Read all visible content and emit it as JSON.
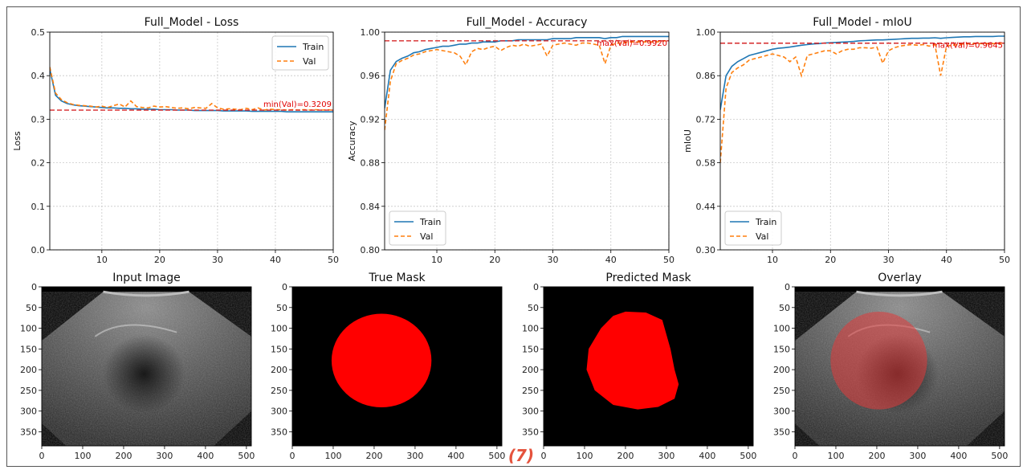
{
  "panel_label": "(7)",
  "colors": {
    "train": "#1f77b4",
    "val": "#ff7f0e",
    "reference_line": "#d62728",
    "annotation": "#ff0000",
    "mask": "#ff0000",
    "border": "#555555"
  },
  "chart_data": [
    {
      "type": "line",
      "title": "Full_Model - Loss",
      "xlabel": "",
      "ylabel": "Loss",
      "xlim": [
        1,
        50
      ],
      "ylim": [
        0.0,
        0.5
      ],
      "xticks": [
        10,
        20,
        30,
        40,
        50
      ],
      "yticks": [
        0.0,
        0.1,
        0.2,
        0.3,
        0.4,
        0.5
      ],
      "ytick_labels": [
        "0.0",
        "0.1",
        "0.2",
        "0.3",
        "0.4",
        "0.5"
      ],
      "grid": true,
      "legend": "upper right",
      "x": [
        1,
        2,
        3,
        4,
        5,
        6,
        7,
        8,
        9,
        10,
        11,
        12,
        13,
        14,
        15,
        16,
        17,
        18,
        19,
        20,
        21,
        22,
        23,
        24,
        25,
        26,
        27,
        28,
        29,
        30,
        31,
        32,
        33,
        34,
        35,
        36,
        37,
        38,
        39,
        40,
        41,
        42,
        43,
        44,
        45,
        46,
        47,
        48,
        49,
        50
      ],
      "series": [
        {
          "name": "Train",
          "style": "solid",
          "values": [
            0.415,
            0.355,
            0.342,
            0.336,
            0.333,
            0.331,
            0.33,
            0.329,
            0.328,
            0.327,
            0.326,
            0.326,
            0.325,
            0.325,
            0.324,
            0.324,
            0.323,
            0.323,
            0.323,
            0.322,
            0.322,
            0.322,
            0.321,
            0.321,
            0.321,
            0.32,
            0.32,
            0.32,
            0.32,
            0.32,
            0.319,
            0.319,
            0.319,
            0.319,
            0.319,
            0.318,
            0.318,
            0.318,
            0.318,
            0.318,
            0.318,
            0.317,
            0.317,
            0.317,
            0.317,
            0.317,
            0.317,
            0.317,
            0.317,
            0.317
          ]
        },
        {
          "name": "Val",
          "style": "dashed",
          "values": [
            0.42,
            0.36,
            0.345,
            0.338,
            0.334,
            0.332,
            0.331,
            0.33,
            0.328,
            0.33,
            0.327,
            0.331,
            0.335,
            0.328,
            0.342,
            0.329,
            0.327,
            0.326,
            0.33,
            0.328,
            0.329,
            0.327,
            0.325,
            0.326,
            0.324,
            0.327,
            0.326,
            0.325,
            0.336,
            0.326,
            0.323,
            0.324,
            0.323,
            0.322,
            0.325,
            0.322,
            0.326,
            0.321,
            0.323,
            0.322,
            0.322,
            0.321,
            0.322,
            0.321,
            0.322,
            0.321,
            0.322,
            0.321,
            0.3215,
            0.3209
          ]
        }
      ],
      "reference_line": {
        "value": 0.3209,
        "label": "min(Val)=0.3209"
      }
    },
    {
      "type": "line",
      "title": "Full_Model - Accuracy",
      "xlabel": "",
      "ylabel": "Accuracy",
      "xlim": [
        1,
        50
      ],
      "ylim": [
        0.8,
        1.0
      ],
      "xticks": [
        10,
        20,
        30,
        40,
        50
      ],
      "yticks": [
        0.8,
        0.84,
        0.88,
        0.92,
        0.96,
        1.0
      ],
      "ytick_labels": [
        "0.80",
        "0.84",
        "0.88",
        "0.92",
        "0.96",
        "1.00"
      ],
      "grid": true,
      "legend": "lower left",
      "x": [
        1,
        2,
        3,
        4,
        5,
        6,
        7,
        8,
        9,
        10,
        11,
        12,
        13,
        14,
        15,
        16,
        17,
        18,
        19,
        20,
        21,
        22,
        23,
        24,
        25,
        26,
        27,
        28,
        29,
        30,
        31,
        32,
        33,
        34,
        35,
        36,
        37,
        38,
        39,
        40,
        41,
        42,
        43,
        44,
        45,
        46,
        47,
        48,
        49,
        50
      ],
      "series": [
        {
          "name": "Train",
          "style": "solid",
          "values": [
            0.93,
            0.965,
            0.973,
            0.976,
            0.978,
            0.981,
            0.982,
            0.984,
            0.985,
            0.986,
            0.987,
            0.987,
            0.988,
            0.989,
            0.989,
            0.99,
            0.99,
            0.991,
            0.991,
            0.991,
            0.992,
            0.992,
            0.992,
            0.993,
            0.993,
            0.993,
            0.993,
            0.993,
            0.993,
            0.994,
            0.994,
            0.994,
            0.994,
            0.995,
            0.995,
            0.995,
            0.995,
            0.995,
            0.994,
            0.995,
            0.995,
            0.996,
            0.996,
            0.996,
            0.996,
            0.996,
            0.996,
            0.996,
            0.996,
            0.996
          ]
        },
        {
          "name": "Val",
          "style": "dashed",
          "values": [
            0.91,
            0.955,
            0.971,
            0.974,
            0.976,
            0.979,
            0.98,
            0.982,
            0.983,
            0.984,
            0.983,
            0.982,
            0.981,
            0.978,
            0.97,
            0.982,
            0.985,
            0.984,
            0.986,
            0.987,
            0.983,
            0.986,
            0.988,
            0.987,
            0.989,
            0.987,
            0.988,
            0.989,
            0.978,
            0.988,
            0.989,
            0.99,
            0.989,
            0.988,
            0.99,
            0.99,
            0.989,
            0.988,
            0.971,
            0.988,
            0.99,
            0.99,
            0.991,
            0.991,
            0.991,
            0.991,
            0.991,
            0.991,
            0.992,
            0.992
          ]
        }
      ],
      "reference_line": {
        "value": 0.992,
        "label": "max(Val)=0.9920"
      }
    },
    {
      "type": "line",
      "title": "Full_Model - mIoU",
      "xlabel": "",
      "ylabel": "mIoU",
      "xlim": [
        1,
        50
      ],
      "ylim": [
        0.3,
        1.0
      ],
      "xticks": [
        10,
        20,
        30,
        40,
        50
      ],
      "yticks": [
        0.3,
        0.44,
        0.58,
        0.72,
        0.86,
        1.0
      ],
      "ytick_labels": [
        "0.30",
        "0.44",
        "0.58",
        "0.72",
        "0.86",
        "1.00"
      ],
      "grid": true,
      "legend": "lower left",
      "x": [
        1,
        2,
        3,
        4,
        5,
        6,
        7,
        8,
        9,
        10,
        11,
        12,
        13,
        14,
        15,
        16,
        17,
        18,
        19,
        20,
        21,
        22,
        23,
        24,
        25,
        26,
        27,
        28,
        29,
        30,
        31,
        32,
        33,
        34,
        35,
        36,
        37,
        38,
        39,
        40,
        41,
        42,
        43,
        44,
        45,
        46,
        47,
        48,
        49,
        50
      ],
      "series": [
        {
          "name": "Train",
          "style": "solid",
          "values": [
            0.75,
            0.86,
            0.89,
            0.905,
            0.915,
            0.925,
            0.93,
            0.935,
            0.94,
            0.945,
            0.948,
            0.95,
            0.952,
            0.955,
            0.958,
            0.96,
            0.962,
            0.963,
            0.965,
            0.966,
            0.967,
            0.968,
            0.969,
            0.97,
            0.972,
            0.973,
            0.974,
            0.975,
            0.975,
            0.976,
            0.977,
            0.978,
            0.979,
            0.98,
            0.98,
            0.981,
            0.981,
            0.982,
            0.98,
            0.982,
            0.983,
            0.984,
            0.985,
            0.985,
            0.986,
            0.986,
            0.986,
            0.986,
            0.987,
            0.987
          ]
        },
        {
          "name": "Val",
          "style": "dashed",
          "values": [
            0.58,
            0.82,
            0.87,
            0.885,
            0.895,
            0.91,
            0.915,
            0.92,
            0.925,
            0.93,
            0.925,
            0.92,
            0.905,
            0.92,
            0.86,
            0.925,
            0.93,
            0.935,
            0.94,
            0.94,
            0.93,
            0.94,
            0.945,
            0.945,
            0.95,
            0.95,
            0.948,
            0.952,
            0.9,
            0.94,
            0.95,
            0.955,
            0.958,
            0.96,
            0.958,
            0.96,
            0.955,
            0.96,
            0.86,
            0.955,
            0.958,
            0.96,
            0.962,
            0.963,
            0.963,
            0.963,
            0.963,
            0.963,
            0.964,
            0.9645
          ]
        }
      ],
      "reference_line": {
        "value": 0.9645,
        "label": "max(Val)=0.9645"
      }
    }
  ],
  "images": [
    {
      "title": "Input Image",
      "kind": "ultrasound",
      "xlim": [
        0,
        512
      ],
      "ylim": [
        0,
        384
      ],
      "xticks": [
        0,
        100,
        200,
        300,
        400,
        500
      ],
      "yticks": [
        0,
        50,
        100,
        150,
        200,
        250,
        300,
        350
      ]
    },
    {
      "title": "True Mask",
      "kind": "mask",
      "xlim": [
        0,
        512
      ],
      "ylim": [
        0,
        384
      ],
      "xticks": [
        0,
        100,
        200,
        300,
        400,
        500
      ],
      "yticks": [
        0,
        50,
        100,
        150,
        200,
        250,
        300,
        350
      ]
    },
    {
      "title": "Predicted Mask",
      "kind": "mask",
      "xlim": [
        0,
        512
      ],
      "ylim": [
        0,
        384
      ],
      "xticks": [
        0,
        100,
        200,
        300,
        400,
        500
      ],
      "yticks": [
        0,
        50,
        100,
        150,
        200,
        250,
        300,
        350
      ]
    },
    {
      "title": "Overlay",
      "kind": "overlay",
      "xlim": [
        0,
        512
      ],
      "ylim": [
        0,
        384
      ],
      "xticks": [
        0,
        100,
        200,
        300,
        400,
        500
      ],
      "yticks": [
        0,
        50,
        100,
        150,
        200,
        250,
        300,
        350
      ]
    }
  ]
}
